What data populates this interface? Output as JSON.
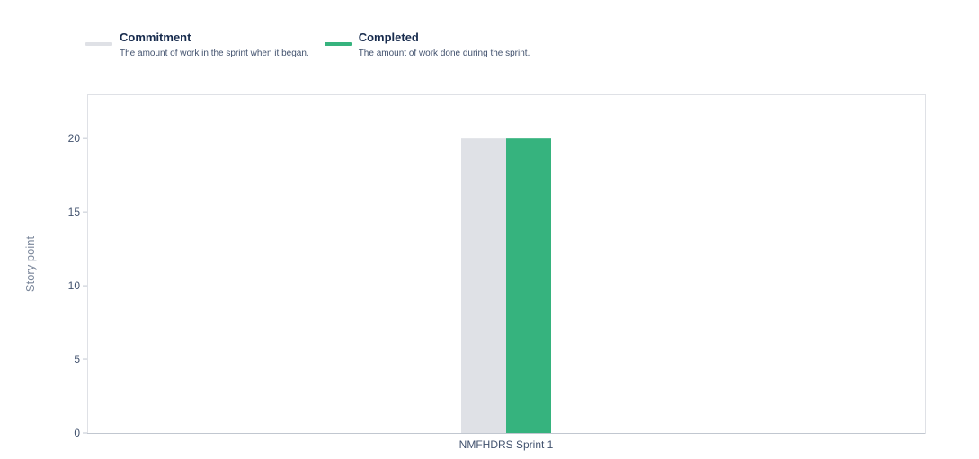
{
  "legend": [
    {
      "label": "Commitment",
      "description": "The amount of work in the sprint when it began.",
      "color": "#dfe1e6"
    },
    {
      "label": "Completed",
      "description": "The amount of work done during the sprint.",
      "color": "#36b37e"
    }
  ],
  "chart_data": {
    "type": "bar",
    "categories": [
      "NMFHDRS Sprint 1"
    ],
    "series": [
      {
        "name": "Commitment",
        "values": [
          20
        ],
        "color": "#dfe1e6"
      },
      {
        "name": "Completed",
        "values": [
          20
        ],
        "color": "#36b37e"
      }
    ],
    "title": "",
    "xlabel": "",
    "ylabel": "Story point",
    "ylim": [
      0,
      23
    ],
    "yticks": [
      0,
      5,
      10,
      15,
      20
    ],
    "grid": false,
    "legend_position": "top-left"
  }
}
